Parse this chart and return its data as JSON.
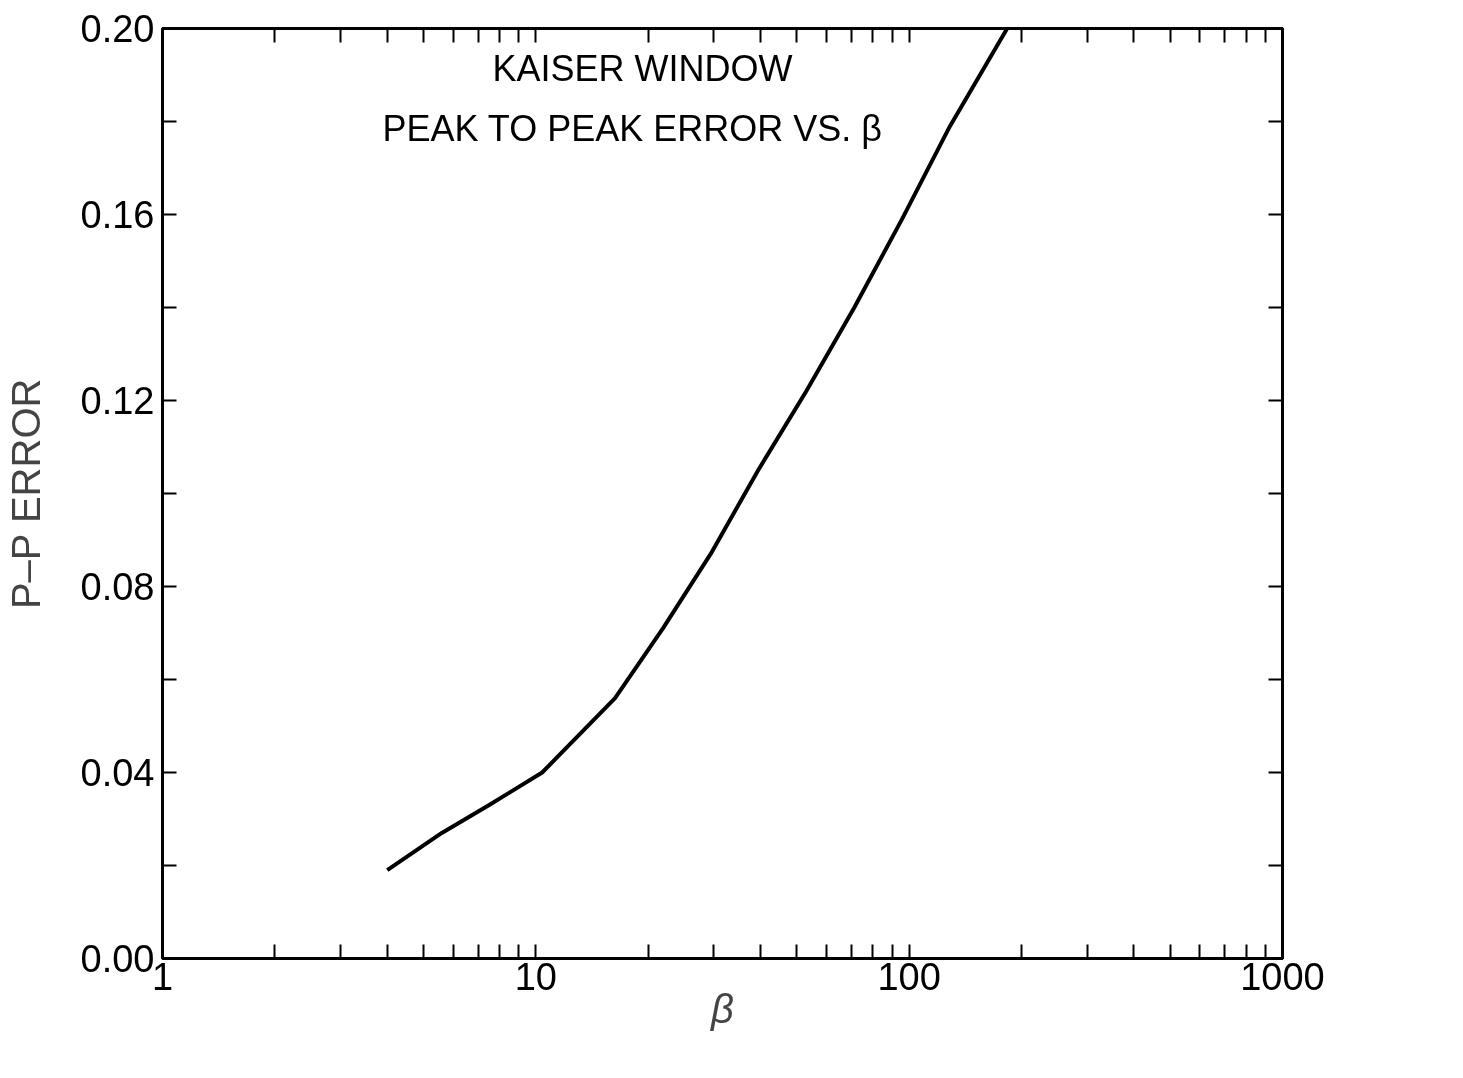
{
  "chart_data": {
    "type": "line",
    "xlabel": "β",
    "ylabel": "P–P ERROR",
    "annotations": [
      "KAISER WINDOW",
      "PEAK TO PEAK ERROR VS. β"
    ],
    "log": "x",
    "x": [
      4.0,
      5.6,
      7.5,
      10.4,
      16.3,
      21.9,
      29.4,
      39.4,
      53,
      71.3,
      95.7,
      128.6,
      183
    ],
    "series": [
      {
        "color": "#000000",
        "values": [
          0.019,
          0.027,
          0.033,
          0.04,
          0.056,
          0.071,
          0.087,
          0.105,
          0.122,
          0.14,
          0.159,
          0.179,
          0.2
        ]
      }
    ],
    "xlim": [
      1,
      1000
    ],
    "ylim": [
      0,
      0.2
    ],
    "xticks": [
      1,
      {
        "value": 2,
        "label": null
      },
      {
        "value": 3,
        "label": null
      },
      {
        "value": 4,
        "label": null
      },
      {
        "value": 5,
        "label": null
      },
      {
        "value": 6,
        "label": null
      },
      {
        "value": 7,
        "label": null
      },
      {
        "value": 8,
        "label": null
      },
      {
        "value": 9,
        "label": null
      },
      10,
      {
        "value": 20,
        "label": null
      },
      {
        "value": 30,
        "label": null
      },
      {
        "value": 40,
        "label": null
      },
      {
        "value": 50,
        "label": null
      },
      {
        "value": 60,
        "label": null
      },
      {
        "value": 70,
        "label": null
      },
      {
        "value": 80,
        "label": null
      },
      {
        "value": 90,
        "label": null
      },
      100,
      {
        "value": 200,
        "label": null
      },
      {
        "value": 300,
        "label": null
      },
      {
        "value": 400,
        "label": null
      },
      {
        "value": 500,
        "label": null
      },
      {
        "value": 600,
        "label": null
      },
      {
        "value": 700,
        "label": null
      },
      {
        "value": 800,
        "label": null
      },
      {
        "value": 900,
        "label": null
      },
      1000
    ],
    "yticks": [
      {
        "value": 0,
        "label": "0.00"
      },
      {
        "value": 0.02,
        "label": null
      },
      {
        "value": 0.04,
        "label": "0.04"
      },
      {
        "value": 0.06,
        "label": null
      },
      {
        "value": 0.08,
        "label": "0.08"
      },
      {
        "value": 0.1,
        "label": null
      },
      {
        "value": 0.12,
        "label": "0.12"
      },
      {
        "value": 0.14,
        "label": null
      },
      {
        "value": 0.16,
        "label": "0.16"
      },
      {
        "value": 0.18,
        "label": null
      },
      {
        "value": 0.2,
        "label": "0.20"
      }
    ],
    "grid": false,
    "marker": "none",
    "line_style": "solid"
  }
}
